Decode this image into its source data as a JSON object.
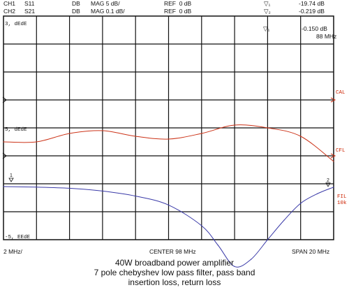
{
  "header": {
    "ch1": {
      "channel": "CH1",
      "param": "S11",
      "format": "DB",
      "scale": "MAG 5 dB/",
      "ref": "REF  0 dB"
    },
    "ch2": {
      "channel": "CH2",
      "param": "S21",
      "format": "DB",
      "scale": "MAG 0.1 dB/",
      "ref": "REF  0 dB"
    },
    "marker1_value": "-19.74 dB",
    "marker2_value": "-0.219 dB",
    "marker1_sym": "▽₁",
    "marker2_sym": "▽₂"
  },
  "grid_labels": {
    "top_left": "3, dEdE",
    "mid_left": "5, dEdE",
    "bottom_left": "-5, EEdE"
  },
  "marker_readout": {
    "symbol": "▽₁",
    "value": "-0.150 dB",
    "freq": "88 MHz"
  },
  "side_labels": {
    "cal": "CAL",
    "cfl": "CFL",
    "fil": "FIL",
    "lok": "10k"
  },
  "footer": {
    "left": "2 MHz/",
    "center": "CENTER 98 MHz",
    "right": "SPAN  20 MHz"
  },
  "caption": {
    "line1": "40W broadband power amplifier",
    "line2": "7 pole chebyshev low pass filter, pass band",
    "line3": "insertion loss, return loss"
  },
  "colors": {
    "s11": "#3a3aa8",
    "s21": "#cc3318",
    "grid": "#111111"
  },
  "chart_data": {
    "type": "line",
    "x_range": [
      88,
      108
    ],
    "x_unit": "MHz",
    "series": [
      {
        "name": "S21",
        "scale_db_per_div": 0.1,
        "x": [
          88,
          90,
          92,
          94,
          96,
          98,
          100,
          102,
          104,
          106,
          108
        ],
        "y": [
          -0.15,
          -0.15,
          -0.12,
          -0.11,
          -0.13,
          -0.14,
          -0.12,
          -0.09,
          -0.1,
          -0.13,
          -0.22
        ]
      },
      {
        "name": "S11",
        "scale_db_per_div": 5,
        "x": [
          88,
          90,
          92,
          94,
          96,
          98,
          100,
          101,
          102,
          103,
          104,
          105,
          106,
          107,
          108
        ],
        "y": [
          -5.5,
          -5.6,
          -5.8,
          -6.3,
          -7.2,
          -8.8,
          -12.5,
          -16.0,
          -19.8,
          -18.5,
          -15.0,
          -11.5,
          -8.5,
          -6.8,
          -5.6
        ]
      }
    ]
  }
}
